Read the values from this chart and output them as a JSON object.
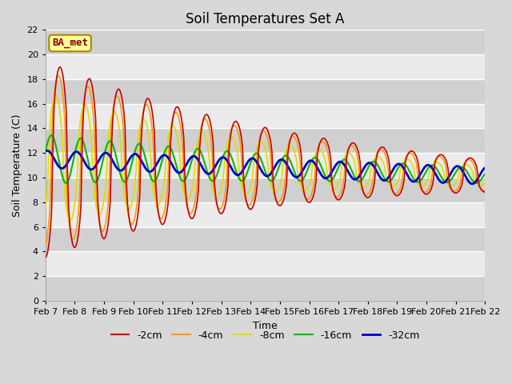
{
  "title": "Soil Temperatures Set A",
  "xlabel": "Time",
  "ylabel": "Soil Temperature (C)",
  "ylim": [
    0,
    22
  ],
  "yticks": [
    0,
    2,
    4,
    6,
    8,
    10,
    12,
    14,
    16,
    18,
    20,
    22
  ],
  "x_labels": [
    "Feb 7",
    "Feb 8",
    "Feb 9",
    "Feb 10",
    "Feb 11",
    "Feb 12",
    "Feb 13",
    "Feb 14",
    "Feb 15",
    "Feb 16",
    "Feb 17",
    "Feb 18",
    "Feb 19",
    "Feb 20",
    "Feb 21",
    "Feb 22"
  ],
  "legend_labels": [
    "-2cm",
    "-4cm",
    "-8cm",
    "-16cm",
    "-32cm"
  ],
  "legend_colors": [
    "#cc0000",
    "#ff9900",
    "#dddd00",
    "#00bb00",
    "#0000cc"
  ],
  "line_widths": [
    1.2,
    1.2,
    1.2,
    1.5,
    2.0
  ],
  "watermark_text": "BA_met",
  "watermark_bg": "#ffff99",
  "watermark_border": "#aa8800",
  "watermark_text_color": "#880000",
  "background_color": "#d8d8d8",
  "plot_bg_color": "#ebebeb",
  "grid_color": "#ffffff",
  "band_color": "#d0d0d0",
  "title_fontsize": 12,
  "axis_label_fontsize": 9,
  "tick_fontsize": 8
}
